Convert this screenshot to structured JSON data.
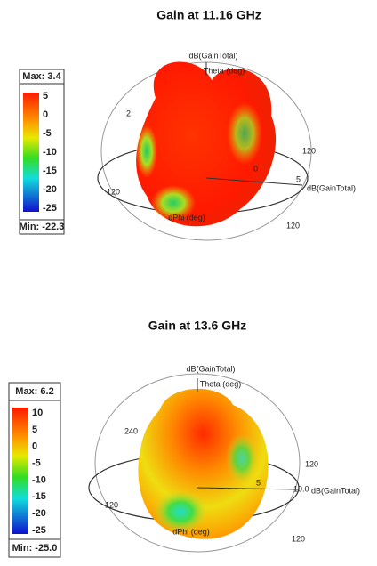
{
  "figures": [
    {
      "title": "Gain at 11.16 GHz",
      "legend": {
        "max": "Max: 3.4",
        "ticks": [
          "5",
          "0",
          "-5",
          "-10",
          "-15",
          "-20",
          "-25"
        ],
        "min": "Min: -22.3"
      },
      "labels": [
        "dB(GainTotal)",
        "Theta (deg)",
        "2",
        "120",
        "0",
        "5",
        "dB(GainTotal)",
        "120",
        "dPhi (deg)",
        "120"
      ]
    },
    {
      "title": "Gain at 13.6 GHz",
      "legend": {
        "max": "Max: 6.2",
        "ticks": [
          "10",
          "5",
          "0",
          "-5",
          "-10",
          "-15",
          "-20",
          "-25"
        ],
        "min": "Min: -25.0"
      },
      "labels": [
        "dB(GainTotal)",
        "Theta (deg)",
        "240",
        "120",
        "5",
        "10.0",
        "dB(GainTotal)",
        "120",
        "dPhi (deg)",
        "120"
      ]
    }
  ]
}
